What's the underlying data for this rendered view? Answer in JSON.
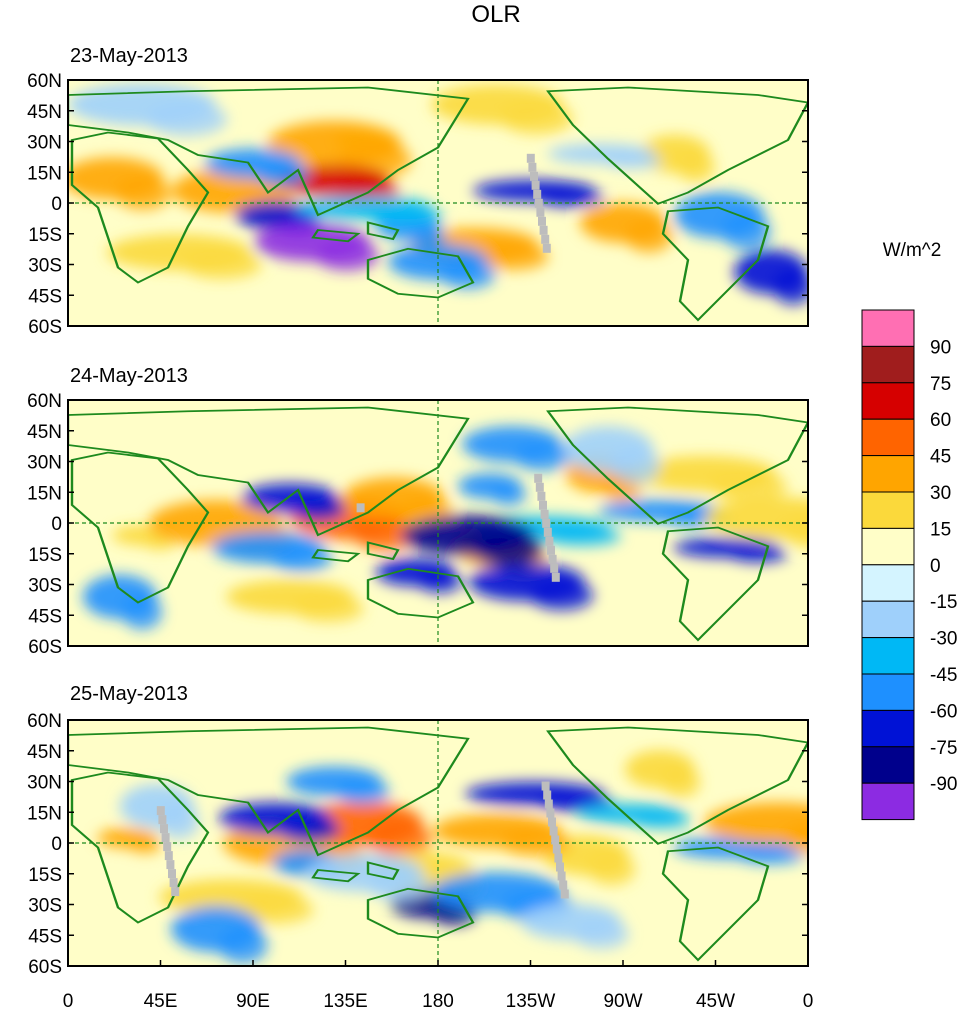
{
  "title": "OLR",
  "units": "W/m^2",
  "panels": [
    {
      "date": "23-May-2013"
    },
    {
      "date": "24-May-2013"
    },
    {
      "date": "25-May-2013"
    }
  ],
  "lat_ticks": [
    "60N",
    "45N",
    "30N",
    "15N",
    "0",
    "15S",
    "30S",
    "45S",
    "60S"
  ],
  "lon_ticks": [
    "0",
    "45E",
    "90E",
    "135E",
    "180",
    "135W",
    "90W",
    "45W",
    "0"
  ],
  "colorbar": {
    "labels": [
      "90",
      "75",
      "60",
      "45",
      "30",
      "15",
      "0",
      "-15",
      "-30",
      "-45",
      "-60",
      "-75",
      "-90"
    ],
    "colors": [
      "#ff6fb3",
      "#a01d1d",
      "#d60000",
      "#ff6400",
      "#ffa500",
      "#fbd93b",
      "#fffec8",
      "#d4f4ff",
      "#9fd0fb",
      "#00b8f5",
      "#1e90ff",
      "#0012d6",
      "#00008c",
      "#8c2be2"
    ]
  },
  "colors": {
    "coast": "#1e8a1e",
    "missing": "#bdbdbd"
  },
  "map_fields": [
    {
      "blobs": [
        [
          0.4,
          0.24,
          "#fbd93b"
        ],
        [
          0.36,
          0.26,
          "#ffa500"
        ],
        [
          0.22,
          0.45,
          "#ffa500"
        ],
        [
          0.06,
          0.4,
          "#ffa500"
        ],
        [
          0.75,
          0.58,
          "#ffa500"
        ],
        [
          0.82,
          0.3,
          "#fbd93b"
        ],
        [
          0.15,
          0.7,
          "#fbd93b"
        ],
        [
          0.55,
          0.67,
          "#ffa500"
        ],
        [
          0.36,
          0.41,
          "#d60000"
        ],
        [
          0.25,
          0.34,
          "#1e90ff"
        ],
        [
          0.28,
          0.55,
          "#0012d6"
        ],
        [
          0.46,
          0.6,
          "#1e90ff"
        ],
        [
          0.4,
          0.52,
          "#00b8f5"
        ],
        [
          0.63,
          0.45,
          "#0012d6"
        ],
        [
          0.72,
          0.3,
          "#9fd0fb"
        ],
        [
          0.88,
          0.55,
          "#1e90ff"
        ],
        [
          0.95,
          0.78,
          "#0012d6"
        ],
        [
          0.1,
          0.1,
          "#9fd0fb"
        ],
        [
          0.58,
          0.1,
          "#fbd93b"
        ],
        [
          0.33,
          0.66,
          "#8c2be2"
        ],
        [
          0.5,
          0.74,
          "#1e90ff"
        ]
      ]
    },
    {
      "blobs": [
        [
          0.1,
          0.55,
          "#fbd93b"
        ],
        [
          0.2,
          0.5,
          "#ffa500"
        ],
        [
          0.38,
          0.48,
          "#ff6400"
        ],
        [
          0.44,
          0.4,
          "#ffa500"
        ],
        [
          0.58,
          0.6,
          "#ffa500"
        ],
        [
          0.72,
          0.3,
          "#ffa500"
        ],
        [
          0.86,
          0.3,
          "#fbd93b"
        ],
        [
          0.3,
          0.8,
          "#fbd93b"
        ],
        [
          0.27,
          0.6,
          "#1e90ff"
        ],
        [
          0.3,
          0.4,
          "#0012d6"
        ],
        [
          0.47,
          0.7,
          "#0012d6"
        ],
        [
          0.57,
          0.35,
          "#1e90ff"
        ],
        [
          0.64,
          0.52,
          "#00b8f5"
        ],
        [
          0.8,
          0.45,
          "#1e90ff"
        ],
        [
          0.89,
          0.6,
          "#0012d6"
        ],
        [
          0.73,
          0.2,
          "#9fd0fb"
        ],
        [
          0.07,
          0.8,
          "#1e90ff"
        ],
        [
          0.96,
          0.48,
          "#fbd93b"
        ],
        [
          0.54,
          0.55,
          "#00008c"
        ],
        [
          0.62,
          0.74,
          "#0012d6"
        ],
        [
          0.6,
          0.18,
          "#1e90ff"
        ]
      ]
    },
    {
      "blobs": [
        [
          0.08,
          0.48,
          "#ffa500"
        ],
        [
          0.3,
          0.5,
          "#ffa500"
        ],
        [
          0.4,
          0.42,
          "#ff6400"
        ],
        [
          0.48,
          0.62,
          "#fbd93b"
        ],
        [
          0.7,
          0.55,
          "#fbd93b"
        ],
        [
          0.8,
          0.2,
          "#fbd93b"
        ],
        [
          0.22,
          0.72,
          "#fbd93b"
        ],
        [
          0.58,
          0.45,
          "#ffa500"
        ],
        [
          0.28,
          0.4,
          "#0012d6"
        ],
        [
          0.36,
          0.25,
          "#1e90ff"
        ],
        [
          0.49,
          0.75,
          "#00008c"
        ],
        [
          0.32,
          0.58,
          "#1e90ff"
        ],
        [
          0.63,
          0.3,
          "#0012d6"
        ],
        [
          0.9,
          0.52,
          "#1e90ff"
        ],
        [
          0.76,
          0.38,
          "#00b8f5"
        ],
        [
          0.2,
          0.85,
          "#1e90ff"
        ],
        [
          0.12,
          0.35,
          "#9fd0fb"
        ],
        [
          0.96,
          0.42,
          "#ffa500"
        ],
        [
          0.58,
          0.7,
          "#1e90ff"
        ],
        [
          0.4,
          0.62,
          "#9fd0fb"
        ],
        [
          0.68,
          0.82,
          "#9fd0fb"
        ]
      ]
    }
  ]
}
